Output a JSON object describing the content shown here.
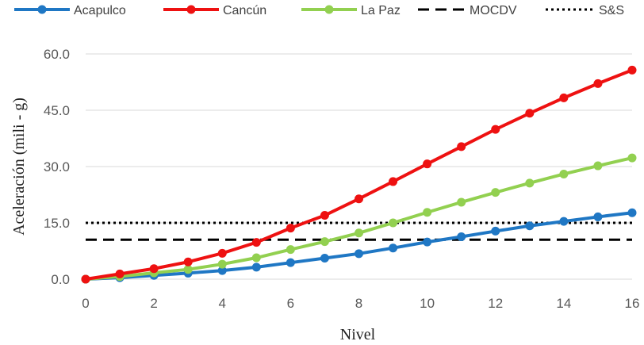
{
  "chart_data": {
    "type": "line",
    "xlabel": "Nivel",
    "ylabel": "Aceleración (mili - g)",
    "x": [
      0,
      1,
      2,
      3,
      4,
      5,
      6,
      7,
      8,
      9,
      10,
      11,
      12,
      13,
      14,
      15,
      16
    ],
    "x_ticks": [
      "0",
      "2",
      "4",
      "6",
      "8",
      "10",
      "12",
      "14",
      "16"
    ],
    "y_ticks": [
      "0.0",
      "15.0",
      "30.0",
      "45.0",
      "60.0"
    ],
    "xlim": [
      0,
      16
    ],
    "ylim": [
      0,
      60
    ],
    "grid": true,
    "legend_position": "top",
    "series": [
      {
        "name": "Acapulco",
        "color": "#1f77c4",
        "style": "solid-marker",
        "values": [
          0.0,
          0.4,
          1.0,
          1.6,
          2.3,
          3.2,
          4.4,
          5.6,
          6.8,
          8.3,
          9.9,
          11.3,
          12.8,
          14.2,
          15.4,
          16.6,
          17.7
        ]
      },
      {
        "name": "Cancún",
        "color": "#ee1111",
        "style": "solid-marker",
        "values": [
          0.0,
          1.4,
          2.8,
          4.6,
          6.9,
          9.8,
          13.6,
          17.0,
          21.4,
          26.0,
          30.7,
          35.3,
          39.9,
          44.2,
          48.3,
          52.1,
          55.7
        ]
      },
      {
        "name": "La Paz",
        "color": "#92d050",
        "style": "solid-marker",
        "values": [
          0.0,
          0.7,
          1.7,
          2.6,
          4.0,
          5.7,
          7.9,
          10.0,
          12.3,
          15.0,
          17.8,
          20.5,
          23.1,
          25.6,
          28.0,
          30.2,
          32.3
        ]
      },
      {
        "name": "MOCDV",
        "color": "#000000",
        "style": "dashed",
        "values": [
          10.5,
          10.5,
          10.5,
          10.5,
          10.5,
          10.5,
          10.5,
          10.5,
          10.5,
          10.5,
          10.5,
          10.5,
          10.5,
          10.5,
          10.5,
          10.5,
          10.5
        ]
      },
      {
        "name": "S&S",
        "color": "#000000",
        "style": "dotted",
        "values": [
          15.0,
          15.0,
          15.0,
          15.0,
          15.0,
          15.0,
          15.0,
          15.0,
          15.0,
          15.0,
          15.0,
          15.0,
          15.0,
          15.0,
          15.0,
          15.0,
          15.0
        ]
      }
    ]
  }
}
